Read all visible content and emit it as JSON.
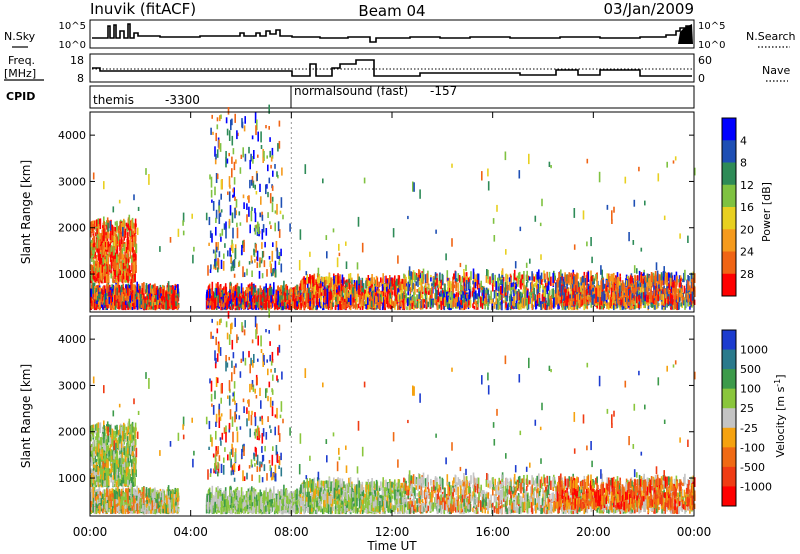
{
  "header": {
    "station": "Inuvik (fitACF)",
    "beam": "Beam 04",
    "date": "03/Jan/2009"
  },
  "nsky_panel": {
    "left_label": "N.Sky",
    "right_label": "N.Search",
    "left_ticks": [
      "10^5",
      "10^0"
    ],
    "right_ticks": [
      "10^5",
      "10^0"
    ]
  },
  "freq_panel": {
    "left_label_line1": "Freq.",
    "left_label_line2": "[MHz]",
    "right_label": "Nave",
    "left_ticks": [
      "18",
      "8"
    ],
    "right_ticks": [
      "60",
      "0"
    ]
  },
  "cpid_panel": {
    "label": "CPID",
    "segments": [
      {
        "name": "themis",
        "id": "-3300"
      },
      {
        "name": "normalsound (fast)",
        "id": "-157"
      }
    ]
  },
  "x_axis": {
    "label": "Time UT",
    "ticks": [
      "00:00",
      "04:00",
      "08:00",
      "12:00",
      "16:00",
      "20:00",
      "00:00"
    ],
    "hours": [
      0,
      4,
      8,
      12,
      16,
      20,
      24
    ]
  },
  "power_panel": {
    "ylabel": "Slant Range [km]",
    "yticks": [
      "1000",
      "2000",
      "3000",
      "4000"
    ],
    "yvalues": [
      1000,
      2000,
      3000,
      4000
    ],
    "ylim": [
      180,
      4500
    ],
    "colorbar_label": "Power [dB]",
    "colorbar_ticks": [
      "4",
      "8",
      "12",
      "16",
      "20",
      "24",
      "28"
    ],
    "colorbar_colors": [
      "#0000ff",
      "#1e4fb4",
      "#2e8b57",
      "#7fc241",
      "#e8d020",
      "#f59a1c",
      "#f06414",
      "#ff0000"
    ]
  },
  "velocity_panel": {
    "ylabel": "Slant Range [km]",
    "yticks": [
      "1000",
      "2000",
      "3000",
      "4000"
    ],
    "yvalues": [
      1000,
      2000,
      3000,
      4000
    ],
    "ylim": [
      180,
      4500
    ],
    "colorbar_label": "Velocity [m s^-1]",
    "colorbar_ticks": [
      "1000",
      "500",
      "100",
      "25",
      "-25",
      "-100",
      "-500",
      "-1000"
    ],
    "colorbar_colors": [
      "#1c3ccf",
      "#2a7a8c",
      "#3c9a4a",
      "#8ac63c",
      "#c4c4c4",
      "#f5a20f",
      "#f06a14",
      "#f03c14",
      "#ff0000"
    ]
  },
  "chart_data": {
    "type": "heatmap",
    "title": "Inuvik (fitACF) Beam 04 03/Jan/2009",
    "xlabel": "Time UT",
    "ylabel": "Slant Range [km]",
    "xlim_hours": [
      0,
      24
    ],
    "ylim_km": [
      180,
      4500
    ],
    "panels": [
      "Power [dB]",
      "Velocity [m s^-1]"
    ],
    "power_scale_db": [
      4,
      8,
      12,
      16,
      20,
      24,
      28
    ],
    "velocity_scale_ms": [
      1000,
      500,
      100,
      25,
      -25,
      -100,
      -500,
      -1000
    ],
    "cpid": [
      {
        "start_hour": 0,
        "end_hour": 8,
        "name": "themis",
        "id": -3300
      },
      {
        "start_hour": 8,
        "end_hour": 24,
        "name": "normalsound (fast)",
        "id": -157
      }
    ],
    "regions": [
      {
        "hours": [
          0,
          3.5
        ],
        "range_km": [
          250,
          600
        ],
        "power": "high",
        "velocity": "low"
      },
      {
        "hours": [
          0,
          1.8
        ],
        "range_km": [
          800,
          2000
        ],
        "power": "high",
        "velocity": "low"
      },
      {
        "hours": [
          4.6,
          8.3
        ],
        "range_km": [
          250,
          600
        ],
        "power": "high",
        "velocity": "low"
      },
      {
        "hours": [
          8.3,
          12.5
        ],
        "range_km": [
          250,
          800
        ],
        "power": "high",
        "velocity": "low"
      },
      {
        "hours": [
          12.5,
          24
        ],
        "range_km": [
          250,
          900
        ],
        "power": "low-medium",
        "velocity": "mixed"
      },
      {
        "hours": [
          18.5,
          24
        ],
        "range_km": [
          300,
          800
        ],
        "power": "medium",
        "velocity": "negative"
      },
      {
        "hours": [
          4.7,
          7.6
        ],
        "range_km": [
          900,
          4500
        ],
        "power": "sparse",
        "velocity": "sparse"
      }
    ]
  }
}
